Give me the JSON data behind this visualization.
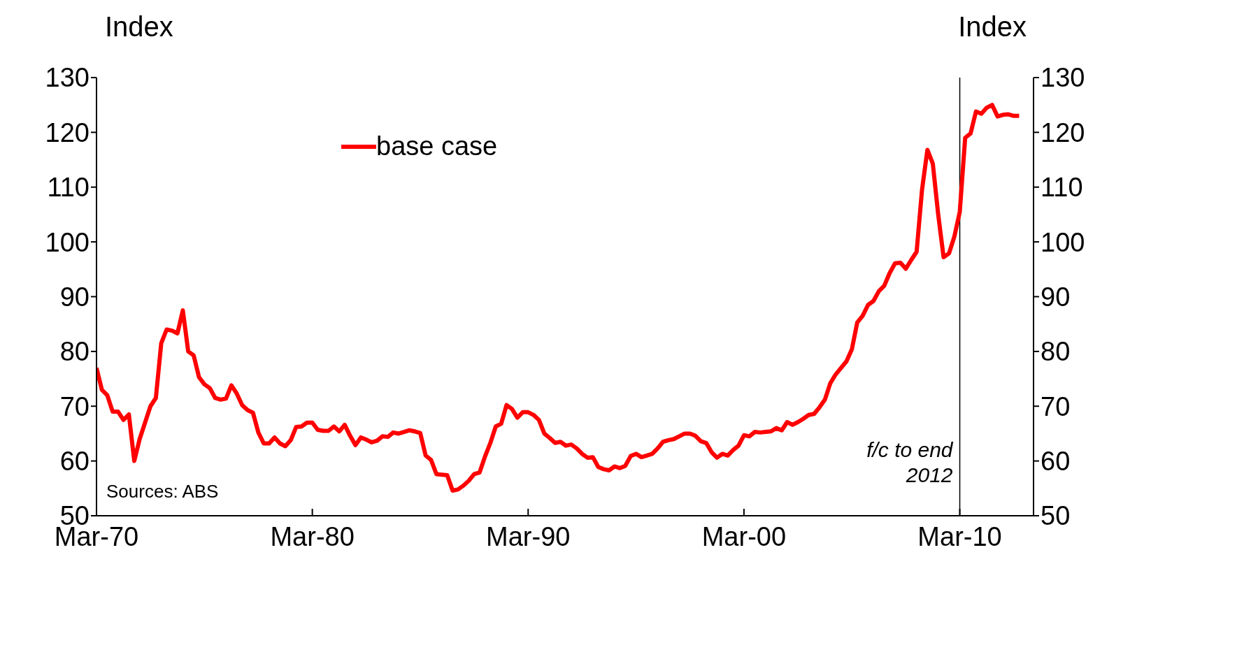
{
  "chart_data": {
    "type": "line",
    "ylabel": "Index",
    "y2label": "Index",
    "x": [
      "1970-03",
      "1970-06",
      "1970-09",
      "1970-12",
      "1971-03",
      "1971-06",
      "1971-09",
      "1971-12",
      "1972-03",
      "1972-06",
      "1972-09",
      "1972-12",
      "1973-03",
      "1973-06",
      "1973-09",
      "1973-12",
      "1974-03",
      "1974-06",
      "1974-09",
      "1974-12",
      "1975-03",
      "1975-06",
      "1975-09",
      "1975-12",
      "1976-03",
      "1976-06",
      "1976-09",
      "1976-12",
      "1977-03",
      "1977-06",
      "1977-09",
      "1977-12",
      "1978-03",
      "1978-06",
      "1978-09",
      "1978-12",
      "1979-03",
      "1979-06",
      "1979-09",
      "1979-12",
      "1980-03",
      "1980-06",
      "1980-09",
      "1980-12",
      "1981-03",
      "1981-06",
      "1981-09",
      "1981-12",
      "1982-03",
      "1982-06",
      "1982-09",
      "1982-12",
      "1983-03",
      "1983-06",
      "1983-09",
      "1983-12",
      "1984-03",
      "1984-06",
      "1984-09",
      "1984-12",
      "1985-03",
      "1985-06",
      "1985-09",
      "1985-12",
      "1986-03",
      "1986-06",
      "1986-09",
      "1986-12",
      "1987-03",
      "1987-06",
      "1987-09",
      "1987-12",
      "1988-03",
      "1988-06",
      "1988-09",
      "1988-12",
      "1989-03",
      "1989-06",
      "1989-09",
      "1989-12",
      "1990-03",
      "1990-06",
      "1990-09",
      "1990-12",
      "1991-03",
      "1991-06",
      "1991-09",
      "1991-12",
      "1992-03",
      "1992-06",
      "1992-09",
      "1992-12",
      "1993-03",
      "1993-06",
      "1993-09",
      "1993-12",
      "1994-03",
      "1994-06",
      "1994-09",
      "1994-12",
      "1995-03",
      "1995-06",
      "1995-09",
      "1995-12",
      "1996-03",
      "1996-06",
      "1996-09",
      "1996-12",
      "1997-03",
      "1997-06",
      "1997-09",
      "1997-12",
      "1998-03",
      "1998-06",
      "1998-09",
      "1998-12",
      "1999-03",
      "1999-06",
      "1999-09",
      "1999-12",
      "2000-03",
      "2000-06",
      "2000-09",
      "2000-12",
      "2001-03",
      "2001-06",
      "2001-09",
      "2001-12",
      "2002-03",
      "2002-06",
      "2002-09",
      "2002-12",
      "2003-03",
      "2003-06",
      "2003-09",
      "2003-12",
      "2004-03",
      "2004-06",
      "2004-09",
      "2004-12",
      "2005-03",
      "2005-06",
      "2005-09",
      "2005-12",
      "2006-03",
      "2006-06",
      "2006-09",
      "2006-12",
      "2007-03",
      "2007-06",
      "2007-09",
      "2007-12",
      "2008-03",
      "2008-06",
      "2008-09",
      "2008-12",
      "2009-03",
      "2009-06",
      "2009-09",
      "2009-12",
      "2010-03",
      "2010-06",
      "2010-09",
      "2010-12",
      "2011-03",
      "2011-06",
      "2011-09",
      "2011-12",
      "2012-03",
      "2012-06",
      "2012-09",
      "2012-12"
    ],
    "series": [
      {
        "name": "base case",
        "color": "#ff0000",
        "values": [
          77,
          73,
          72,
          69,
          69,
          67.5,
          68.5,
          60,
          64,
          67,
          70,
          71.5,
          81.5,
          84,
          83.8,
          83.3,
          87.5,
          80,
          79.3,
          75.3,
          74,
          73.3,
          71.5,
          71.2,
          71.4,
          73.8,
          72.3,
          70.2,
          69.3,
          68.8,
          65.2,
          63.2,
          63.2,
          64.3,
          63.2,
          62.7,
          63.8,
          66.2,
          66.3,
          67,
          67,
          65.7,
          65.5,
          65.5,
          66.3,
          65.4,
          66.6,
          64.6,
          62.9,
          64.3,
          63.9,
          63.4,
          63.7,
          64.5,
          64.4,
          65.2,
          65,
          65.3,
          65.6,
          65.4,
          65.1,
          61,
          60.2,
          57.6,
          57.5,
          57.4,
          54.6,
          54.8,
          55.5,
          56.4,
          57.6,
          57.9,
          60.8,
          63.3,
          66.3,
          66.8,
          70.2,
          69.5,
          67.9,
          68.9,
          68.9,
          68.4,
          67.5,
          65,
          64.2,
          63.3,
          63.5,
          62.8,
          63,
          62.3,
          61.3,
          60.6,
          60.7,
          58.9,
          58.5,
          58.3,
          59,
          58.7,
          59.1,
          60.9,
          61.3,
          60.7,
          61,
          61.3,
          62.3,
          63.5,
          63.8,
          64,
          64.5,
          65,
          65,
          64.6,
          63.6,
          63.3,
          61.6,
          60.6,
          61.3,
          61,
          62,
          62.8,
          64.7,
          64.5,
          65.3,
          65.2,
          65.3,
          65.4,
          66,
          65.6,
          67.1,
          66.6,
          67.1,
          67.7,
          68.4,
          68.6,
          69.8,
          71.2,
          74.2,
          75.8,
          77,
          78.2,
          80.4,
          85.3,
          86.5,
          88.5,
          89.2,
          91,
          92,
          94.3,
          96.1,
          96.2,
          95.1,
          96.7,
          98.2,
          109.5,
          116.8,
          114.3,
          105,
          97.2,
          97.9,
          101,
          105.5,
          119,
          119.8,
          123.8,
          123.4,
          124.5,
          125,
          122.9,
          123.2,
          123.3,
          123,
          123
        ]
      }
    ],
    "xlim": [
      "1970-03",
      "2013-08"
    ],
    "xticks": [
      {
        "value": "1970-03",
        "label": "Mar-70"
      },
      {
        "value": "1980-03",
        "label": "Mar-80"
      },
      {
        "value": "1990-03",
        "label": "Mar-90"
      },
      {
        "value": "2000-03",
        "label": "Mar-00"
      },
      {
        "value": "2010-03",
        "label": "Mar-10"
      }
    ],
    "ylim": [
      50,
      130
    ],
    "yticks": [
      50,
      60,
      70,
      80,
      90,
      100,
      110,
      120,
      130
    ],
    "y2lim": [
      50,
      130
    ],
    "y2ticks": [
      50,
      60,
      70,
      80,
      90,
      100,
      110,
      120,
      130
    ],
    "ref_lines": [
      {
        "axis": "x",
        "value": "2010-03",
        "label": "f/c to end 2012",
        "color": "#000000"
      }
    ],
    "annotations": [
      "Sources: ABS"
    ],
    "legend": "top left",
    "grid": false,
    "marker": "none",
    "line_style": "solid"
  }
}
